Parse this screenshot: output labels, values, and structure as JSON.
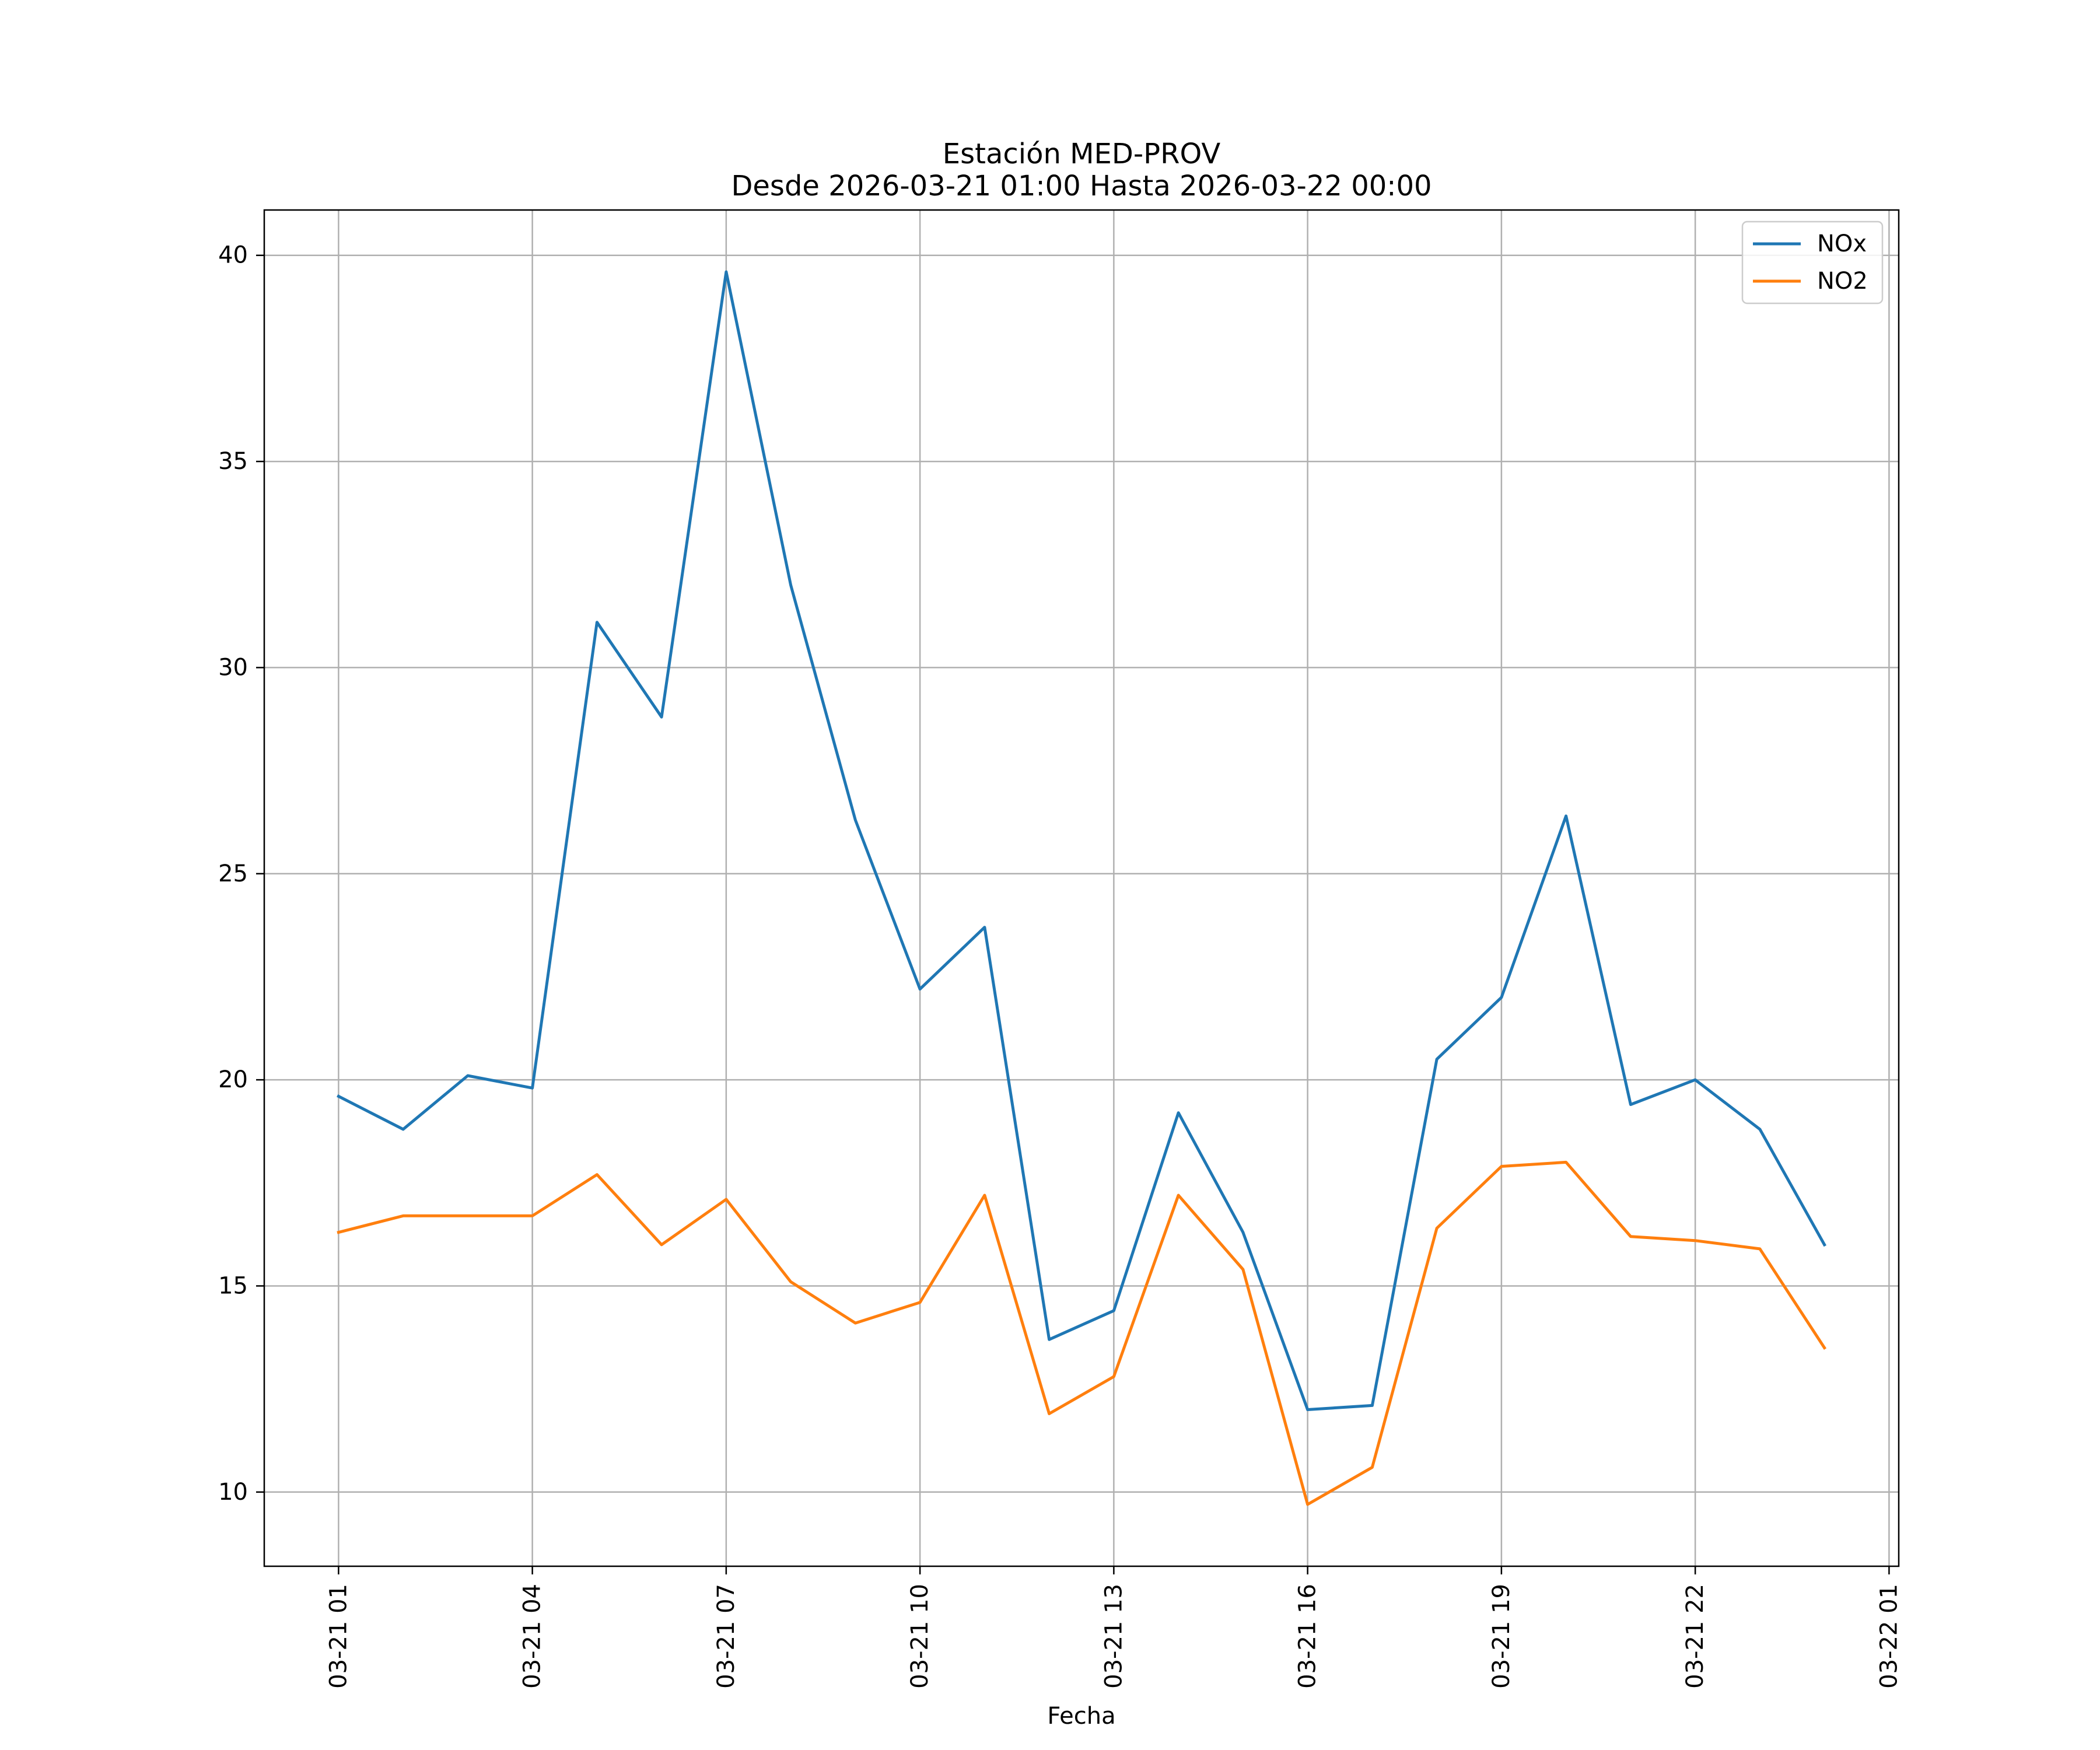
{
  "chart_data": {
    "type": "line",
    "title": "Estación MED-PROV",
    "subtitle": "Desde 2026-03-21 01:00 Hasta 2026-03-22 00:00",
    "xlabel": "Fecha",
    "ylabel": "",
    "x": [
      "2026-03-21 01:00",
      "2026-03-21 02:00",
      "2026-03-21 03:00",
      "2026-03-21 04:00",
      "2026-03-21 05:00",
      "2026-03-21 06:00",
      "2026-03-21 07:00",
      "2026-03-21 08:00",
      "2026-03-21 09:00",
      "2026-03-21 10:00",
      "2026-03-21 11:00",
      "2026-03-21 12:00",
      "2026-03-21 13:00",
      "2026-03-21 14:00",
      "2026-03-21 15:00",
      "2026-03-21 16:00",
      "2026-03-21 17:00",
      "2026-03-21 18:00",
      "2026-03-21 19:00",
      "2026-03-21 20:00",
      "2026-03-21 21:00",
      "2026-03-21 22:00",
      "2026-03-21 23:00",
      "2026-03-22 00:00"
    ],
    "series": [
      {
        "name": "NOx",
        "color": "#1f77b4",
        "values": [
          19.6,
          18.8,
          20.1,
          19.8,
          31.1,
          28.8,
          39.6,
          32.0,
          26.3,
          22.2,
          23.7,
          13.7,
          14.4,
          19.2,
          16.3,
          12.0,
          12.1,
          20.5,
          22.0,
          26.4,
          19.4,
          20.0,
          18.8,
          16.0
        ]
      },
      {
        "name": "NO2",
        "color": "#ff7f0e",
        "values": [
          16.3,
          16.7,
          16.7,
          16.7,
          17.7,
          16.0,
          17.1,
          15.1,
          14.1,
          14.6,
          17.2,
          11.9,
          12.8,
          17.2,
          15.4,
          9.7,
          10.6,
          16.4,
          17.9,
          18.0,
          16.2,
          16.1,
          15.9,
          13.5
        ]
      }
    ],
    "xticks": [
      "03-21 01",
      "03-21 04",
      "03-21 07",
      "03-21 10",
      "03-21 13",
      "03-21 16",
      "03-21 19",
      "03-21 22",
      "03-22 01"
    ],
    "yticks": [
      10,
      15,
      20,
      25,
      30,
      35,
      40
    ],
    "xlim": [
      "2026-03-20 23:51",
      "2026-03-22 01:09"
    ],
    "ylim": [
      8.2,
      41.1
    ],
    "grid": true,
    "legend_position": "top-right"
  }
}
